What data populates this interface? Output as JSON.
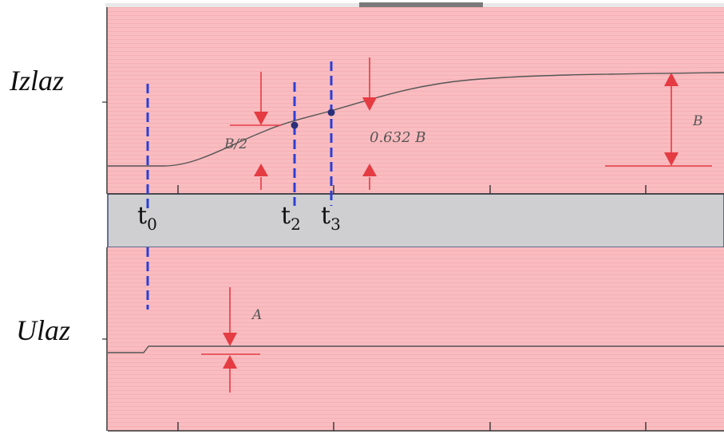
{
  "labels": {
    "output": "Izlaz",
    "input": "Ulaz",
    "t0": "t",
    "t0_sub": "0",
    "t2": "t",
    "t2_sub": "2",
    "t3": "t",
    "t3_sub": "3",
    "half_b": "B/2",
    "tau_level": "0.632 B",
    "b": "B",
    "a": "A"
  },
  "colors": {
    "plot_bg": "#f9bcc0",
    "separator": "#cfcfd1",
    "curve": "#555555",
    "marker": "#e53b43",
    "dashed": "#2b3fd6",
    "point": "#2a2f7a",
    "axis": "#333333"
  }
}
